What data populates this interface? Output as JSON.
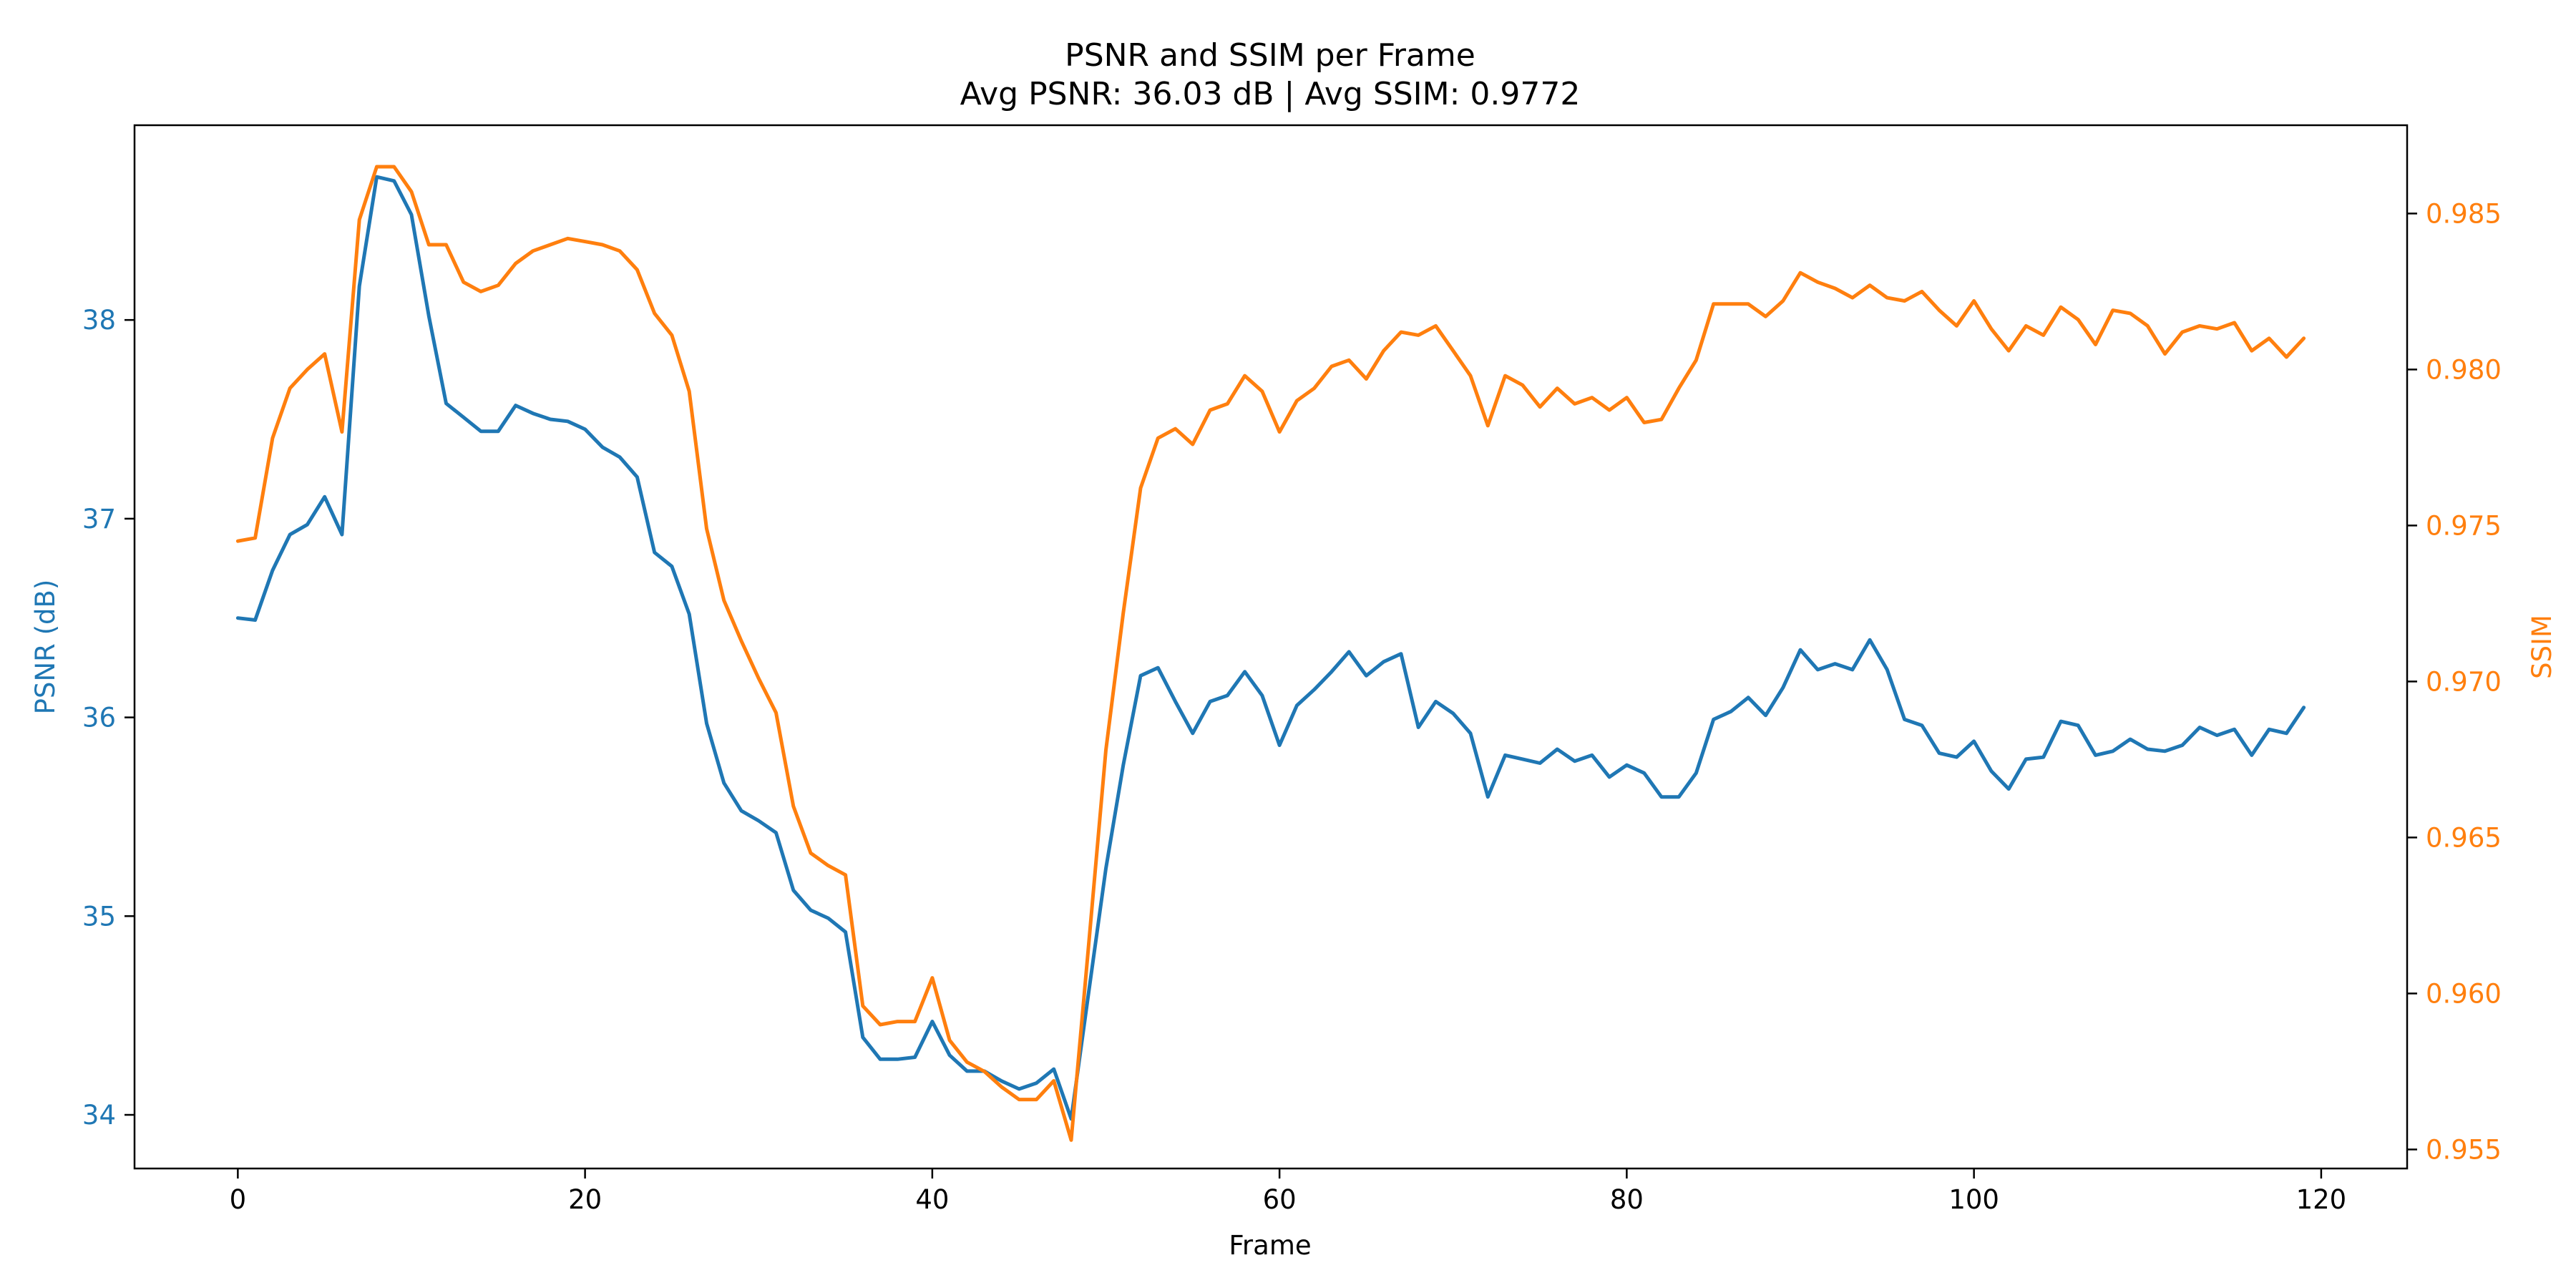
{
  "chart_data": {
    "type": "line",
    "title": "PSNR and SSIM per Frame",
    "subtitle": "Avg PSNR: 36.03 dB | Avg SSIM: 0.9772",
    "xlabel": "Frame",
    "ylabel_left": "PSNR (dB)",
    "ylabel_right": "SSIM",
    "xlim": [
      -5.95,
      124.95
    ],
    "ylim_left": [
      33.73,
      38.98
    ],
    "ylim_right": [
      0.95439,
      0.98783
    ],
    "x_ticks": [
      0,
      20,
      40,
      60,
      80,
      100,
      120
    ],
    "x_tick_labels": [
      "0",
      "20",
      "40",
      "60",
      "80",
      "100",
      "120"
    ],
    "y_left_ticks": [
      34,
      35,
      36,
      37,
      38
    ],
    "y_left_tick_labels": [
      "34",
      "35",
      "36",
      "37",
      "38"
    ],
    "y_right_ticks": [
      0.955,
      0.96,
      0.965,
      0.97,
      0.975,
      0.98,
      0.985
    ],
    "y_right_tick_labels": [
      "0.955",
      "0.960",
      "0.965",
      "0.970",
      "0.975",
      "0.980",
      "0.985"
    ],
    "grid": false,
    "legend": "none",
    "colors": {
      "psnr": "#1f77b4",
      "ssim": "#ff7f0e"
    },
    "x": [
      0,
      1,
      2,
      3,
      4,
      5,
      6,
      7,
      8,
      9,
      10,
      11,
      12,
      13,
      14,
      15,
      16,
      17,
      18,
      19,
      20,
      21,
      22,
      23,
      24,
      25,
      26,
      27,
      28,
      29,
      30,
      31,
      32,
      33,
      34,
      35,
      36,
      37,
      38,
      39,
      40,
      41,
      42,
      43,
      44,
      45,
      46,
      47,
      48,
      49,
      50,
      51,
      52,
      53,
      54,
      55,
      56,
      57,
      58,
      59,
      60,
      61,
      62,
      63,
      64,
      65,
      66,
      67,
      68,
      69,
      70,
      71,
      72,
      73,
      74,
      75,
      76,
      77,
      78,
      79,
      80,
      81,
      82,
      83,
      84,
      85,
      86,
      87,
      88,
      89,
      90,
      91,
      92,
      93,
      94,
      95,
      96,
      97,
      98,
      99,
      100,
      101,
      102,
      103,
      104,
      105,
      106,
      107,
      108,
      109,
      110,
      111,
      112,
      113,
      114,
      115,
      116,
      117,
      118,
      119
    ],
    "series": [
      {
        "axis": "left",
        "color": "#1f77b4",
        "values": [
          36.5,
          36.49,
          36.74,
          36.92,
          36.97,
          37.11,
          36.92,
          38.17,
          38.72,
          38.7,
          38.53,
          38.02,
          37.58,
          37.51,
          37.44,
          37.44,
          37.57,
          37.53,
          37.5,
          37.49,
          37.45,
          37.36,
          37.31,
          37.21,
          36.83,
          36.76,
          36.52,
          35.97,
          35.67,
          35.53,
          35.48,
          35.42,
          35.13,
          35.03,
          34.99,
          34.92,
          34.39,
          34.28,
          34.28,
          34.29,
          34.47,
          34.3,
          34.22,
          34.22,
          34.17,
          34.13,
          34.16,
          34.23,
          33.98,
          34.61,
          35.24,
          35.76,
          36.21,
          36.25,
          36.08,
          35.92,
          36.08,
          36.11,
          36.23,
          36.11,
          35.86,
          36.06,
          36.14,
          36.23,
          36.33,
          36.21,
          36.28,
          36.32,
          35.95,
          36.08,
          36.02,
          35.92,
          35.6,
          35.81,
          35.79,
          35.77,
          35.84,
          35.78,
          35.81,
          35.7,
          35.76,
          35.72,
          35.6,
          35.6,
          35.72,
          35.99,
          36.03,
          36.1,
          36.01,
          36.15,
          36.34,
          36.24,
          36.27,
          36.24,
          36.39,
          36.24,
          35.99,
          35.96,
          35.82,
          35.8,
          35.88,
          35.73,
          35.64,
          35.79,
          35.8,
          35.98,
          35.96,
          35.81,
          35.83,
          35.89,
          35.84,
          35.83,
          35.86,
          35.95,
          35.91,
          35.94,
          35.81,
          35.94,
          35.92,
          36.05
        ]
      },
      {
        "axis": "right",
        "color": "#ff7f0e",
        "values": [
          0.9745,
          0.9746,
          0.9778,
          0.9794,
          0.98,
          0.9805,
          0.978,
          0.9848,
          0.9865,
          0.9865,
          0.9857,
          0.984,
          0.984,
          0.9828,
          0.9825,
          0.9827,
          0.9834,
          0.9838,
          0.984,
          0.9842,
          0.9841,
          0.984,
          0.9838,
          0.9832,
          0.9818,
          0.9811,
          0.9793,
          0.9749,
          0.9726,
          0.9713,
          0.9701,
          0.969,
          0.966,
          0.9645,
          0.9641,
          0.9638,
          0.9596,
          0.959,
          0.9591,
          0.9591,
          0.9605,
          0.9585,
          0.9578,
          0.9575,
          0.957,
          0.9566,
          0.9566,
          0.9572,
          0.9553,
          0.9615,
          0.9678,
          0.9722,
          0.9762,
          0.9778,
          0.9781,
          0.9776,
          0.9787,
          0.9789,
          0.9798,
          0.9793,
          0.978,
          0.979,
          0.9794,
          0.9801,
          0.9803,
          0.9797,
          0.9806,
          0.9812,
          0.9811,
          0.9814,
          0.9806,
          0.9798,
          0.9782,
          0.9798,
          0.9795,
          0.9788,
          0.9794,
          0.9789,
          0.9791,
          0.9787,
          0.9791,
          0.9783,
          0.9784,
          0.9794,
          0.9803,
          0.9821,
          0.9821,
          0.9821,
          0.9817,
          0.9822,
          0.9831,
          0.9828,
          0.9826,
          0.9823,
          0.9827,
          0.9823,
          0.9822,
          0.9825,
          0.9819,
          0.9814,
          0.9822,
          0.9813,
          0.9806,
          0.9814,
          0.9811,
          0.982,
          0.9816,
          0.9808,
          0.9819,
          0.9818,
          0.9814,
          0.9805,
          0.9812,
          0.9814,
          0.9813,
          0.9815,
          0.9806,
          0.981,
          0.9804,
          0.981
        ]
      }
    ]
  }
}
